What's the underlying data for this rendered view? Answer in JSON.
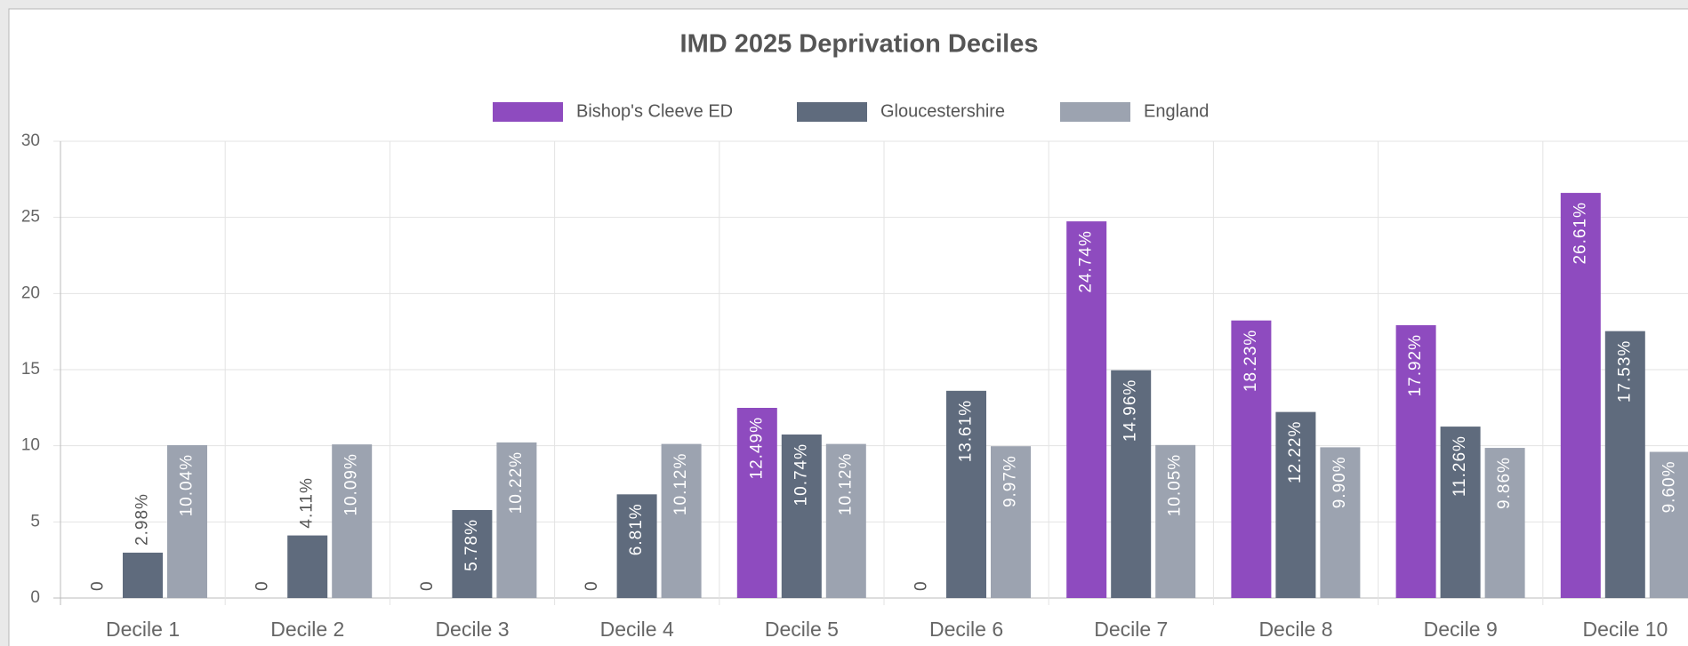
{
  "chart_data": {
    "type": "bar",
    "title": "IMD 2025 Deprivation Deciles",
    "categories": [
      "Decile 1",
      "Decile 2",
      "Decile 3",
      "Decile 4",
      "Decile 5",
      "Decile 6",
      "Decile 7",
      "Decile 8",
      "Decile 9",
      "Decile 10"
    ],
    "series": [
      {
        "name": "Bishop's Cleeve ED",
        "color": "#8e4bbf",
        "values": [
          0,
          0,
          0,
          0,
          12.49,
          0,
          24.74,
          18.23,
          17.92,
          26.61
        ],
        "value_labels": [
          "0",
          "0",
          "0",
          "0",
          "12.49%",
          "0",
          "24.74%",
          "18.23%",
          "17.92%",
          "26.61%"
        ]
      },
      {
        "name": "Gloucestershire",
        "color": "#5f6b7d",
        "values": [
          2.98,
          4.11,
          5.78,
          6.81,
          10.74,
          13.61,
          14.96,
          12.22,
          11.26,
          17.53
        ],
        "value_labels": [
          "2.98%",
          "4.11%",
          "5.78%",
          "6.81%",
          "10.74%",
          "13.61%",
          "14.96%",
          "12.22%",
          "11.26%",
          "17.53%"
        ]
      },
      {
        "name": "England",
        "color": "#9ca3b0",
        "values": [
          10.04,
          10.09,
          10.22,
          10.12,
          10.12,
          9.97,
          10.05,
          9.9,
          9.86,
          9.6
        ],
        "value_labels": [
          "10.04%",
          "10.09%",
          "10.22%",
          "10.12%",
          "10.12%",
          "9.97%",
          "10.05%",
          "9.90%",
          "9.86%",
          "9.60%"
        ]
      }
    ],
    "ylim": [
      0,
      30
    ],
    "yticks": [
      0,
      5,
      10,
      15,
      20,
      25,
      30
    ],
    "grid": true,
    "legend": "top"
  }
}
